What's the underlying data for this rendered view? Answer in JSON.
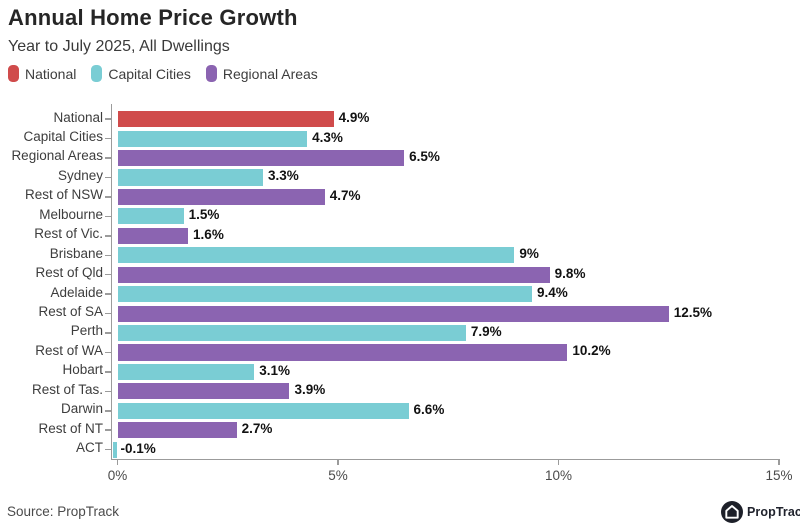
{
  "header": {
    "title": "Annual Home Price Growth",
    "subtitle": "Year to July 2025, All Dwellings"
  },
  "legend": {
    "items": [
      {
        "label": "National",
        "color": "#d04b4b"
      },
      {
        "label": "Capital Cities",
        "color": "#7acdd4"
      },
      {
        "label": "Regional Areas",
        "color": "#8b64b1"
      }
    ]
  },
  "chart_data": {
    "type": "bar",
    "orientation": "horizontal",
    "title": "Annual Home Price Growth",
    "subtitle": "Year to July 2025, All Dwellings",
    "xlabel": "",
    "ylabel": "",
    "xlim": [
      0,
      15
    ],
    "grid": false,
    "legend_position": "top-left",
    "x_ticks": [
      {
        "value": 0,
        "label": "0%"
      },
      {
        "value": 5,
        "label": "5%"
      },
      {
        "value": 10,
        "label": "10%"
      },
      {
        "value": 15,
        "label": "15%"
      }
    ],
    "series_colors": {
      "national": "#d04b4b",
      "capital": "#7acdd4",
      "regional": "#8b64b1"
    },
    "bars": [
      {
        "label": "National",
        "value": 4.9,
        "display": "4.9%",
        "series": "national"
      },
      {
        "label": "Capital Cities",
        "value": 4.3,
        "display": "4.3%",
        "series": "capital"
      },
      {
        "label": "Regional Areas",
        "value": 6.5,
        "display": "6.5%",
        "series": "regional"
      },
      {
        "label": "Sydney",
        "value": 3.3,
        "display": "3.3%",
        "series": "capital"
      },
      {
        "label": "Rest of NSW",
        "value": 4.7,
        "display": "4.7%",
        "series": "regional"
      },
      {
        "label": "Melbourne",
        "value": 1.5,
        "display": "1.5%",
        "series": "capital"
      },
      {
        "label": "Rest of Vic.",
        "value": 1.6,
        "display": "1.6%",
        "series": "regional"
      },
      {
        "label": "Brisbane",
        "value": 9.0,
        "display": "9%",
        "series": "capital"
      },
      {
        "label": "Rest of Qld",
        "value": 9.8,
        "display": "9.8%",
        "series": "regional"
      },
      {
        "label": "Adelaide",
        "value": 9.4,
        "display": "9.4%",
        "series": "capital"
      },
      {
        "label": "Rest of SA",
        "value": 12.5,
        "display": "12.5%",
        "series": "regional"
      },
      {
        "label": "Perth",
        "value": 7.9,
        "display": "7.9%",
        "series": "capital"
      },
      {
        "label": "Rest of WA",
        "value": 10.2,
        "display": "10.2%",
        "series": "regional"
      },
      {
        "label": "Hobart",
        "value": 3.1,
        "display": "3.1%",
        "series": "capital"
      },
      {
        "label": "Rest of Tas.",
        "value": 3.9,
        "display": "3.9%",
        "series": "regional"
      },
      {
        "label": "Darwin",
        "value": 6.6,
        "display": "6.6%",
        "series": "capital"
      },
      {
        "label": "Rest of NT",
        "value": 2.7,
        "display": "2.7%",
        "series": "regional"
      },
      {
        "label": "ACT",
        "value": -0.1,
        "display": "-0.1%",
        "series": "capital"
      }
    ]
  },
  "footer": {
    "source": "Source: PropTrack",
    "logo_text": "PropTrack"
  },
  "colors": {
    "axis": "#9b9b9b",
    "category_label": "#3d3d3d",
    "value_label": "#121212",
    "tick_label": "#4a4a4a",
    "logo_bg": "#1d2029"
  }
}
